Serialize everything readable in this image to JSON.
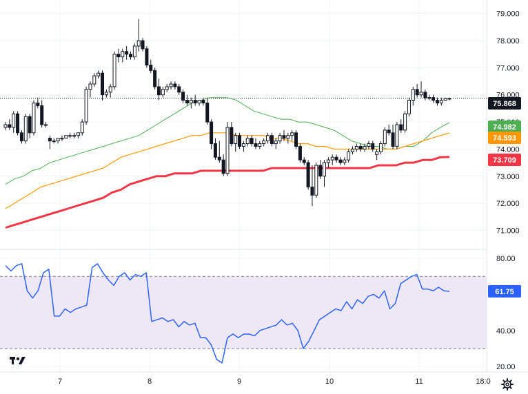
{
  "colors": {
    "up": "#131722",
    "down": "#131722",
    "ma_fast": "#4caf50",
    "ma_mid": "#ff9800",
    "ma_slow": "#f23645",
    "rsi": "#2962ff",
    "rsi_band": "#ede7f6",
    "badge_price": "#131722",
    "badge_rsi": "#2962ff"
  },
  "icons": {
    "logo": "tradingview-logo-icon",
    "settings": "gear-icon"
  },
  "chart_data": [
    {
      "type": "candlestick",
      "title": "",
      "ylim": [
        70.3,
        79.5
      ],
      "y_ticks": [
        "71.000",
        "72.000",
        "73.000",
        "74.000",
        "75.000",
        "76.000",
        "77.000",
        "78.000",
        "79.000"
      ],
      "x_ticks": [
        "7",
        "8",
        "9",
        "10",
        "11",
        "18:0"
      ],
      "last_price_line": 75.868,
      "badges": [
        {
          "label": "75.868",
          "value": 75.868,
          "color": "#131722"
        },
        {
          "label": "74.982",
          "value": 74.982,
          "color": "#4caf50"
        },
        {
          "label": "74.593",
          "value": 74.593,
          "color": "#ff9800"
        },
        {
          "label": "73.709",
          "value": 73.709,
          "color": "#f23645"
        }
      ],
      "candles": [
        [
          74.8,
          75.0,
          74.7,
          74.9
        ],
        [
          74.9,
          75.1,
          74.7,
          74.8
        ],
        [
          74.8,
          75.4,
          74.6,
          75.3
        ],
        [
          75.3,
          75.4,
          74.5,
          74.6
        ],
        [
          74.6,
          74.7,
          74.2,
          74.3
        ],
        [
          74.3,
          75.3,
          74.2,
          75.2
        ],
        [
          75.2,
          75.3,
          74.4,
          74.6
        ],
        [
          74.6,
          75.8,
          74.5,
          75.7
        ],
        [
          75.7,
          75.9,
          75.5,
          75.6
        ],
        [
          75.6,
          75.8,
          74.8,
          74.9
        ],
        [
          74.9,
          75.0,
          74.8,
          74.9
        ],
        [
          74.4,
          74.5,
          74.0,
          74.3
        ],
        [
          74.3,
          74.4,
          74.2,
          74.3
        ],
        [
          74.3,
          74.4,
          74.2,
          74.4
        ],
        [
          74.4,
          74.5,
          74.3,
          74.4
        ],
        [
          74.4,
          74.5,
          74.4,
          74.5
        ],
        [
          74.5,
          74.6,
          74.4,
          74.5
        ],
        [
          74.5,
          74.6,
          74.4,
          74.5
        ],
        [
          74.5,
          74.6,
          74.4,
          74.6
        ],
        [
          74.6,
          75.1,
          74.5,
          75.0
        ],
        [
          75.0,
          76.3,
          74.9,
          76.2
        ],
        [
          76.2,
          76.5,
          75.9,
          76.4
        ],
        [
          76.4,
          76.8,
          76.3,
          76.7
        ],
        [
          76.7,
          76.9,
          76.6,
          76.8
        ],
        [
          76.8,
          76.9,
          75.8,
          76.0
        ],
        [
          76.0,
          76.2,
          75.9,
          76.1
        ],
        [
          76.1,
          76.4,
          75.9,
          76.3
        ],
        [
          76.3,
          77.6,
          76.2,
          77.5
        ],
        [
          77.5,
          77.7,
          77.2,
          77.4
        ],
        [
          77.4,
          77.7,
          77.2,
          77.6
        ],
        [
          77.6,
          77.8,
          77.3,
          77.5
        ],
        [
          77.5,
          77.6,
          77.3,
          77.4
        ],
        [
          77.4,
          77.9,
          77.3,
          77.8
        ],
        [
          77.8,
          78.8,
          77.6,
          78.0
        ],
        [
          78.0,
          78.1,
          77.6,
          77.7
        ],
        [
          77.7,
          77.8,
          77.0,
          77.1
        ],
        [
          77.1,
          77.3,
          76.8,
          76.9
        ],
        [
          76.9,
          77.0,
          76.2,
          76.3
        ],
        [
          76.3,
          76.6,
          75.8,
          76.0
        ],
        [
          76.0,
          76.3,
          75.9,
          76.2
        ],
        [
          76.2,
          76.4,
          76.1,
          76.3
        ],
        [
          76.3,
          76.5,
          76.2,
          76.4
        ],
        [
          76.4,
          76.5,
          76.2,
          76.3
        ],
        [
          76.3,
          76.4,
          76.0,
          76.1
        ],
        [
          76.1,
          76.2,
          75.7,
          75.8
        ],
        [
          75.8,
          76.0,
          75.6,
          75.7
        ],
        [
          75.7,
          75.9,
          75.5,
          75.8
        ],
        [
          75.8,
          76.0,
          75.6,
          75.7
        ],
        [
          75.7,
          75.8,
          75.6,
          75.8
        ],
        [
          75.8,
          75.9,
          75.6,
          75.7
        ],
        [
          75.7,
          75.9,
          74.9,
          75.0
        ],
        [
          75.0,
          75.1,
          74.0,
          74.2
        ],
        [
          74.2,
          74.4,
          73.6,
          73.7
        ],
        [
          73.7,
          74.3,
          73.5,
          73.6
        ],
        [
          73.6,
          73.8,
          73.0,
          73.1
        ],
        [
          73.1,
          75.0,
          73.0,
          74.8
        ],
        [
          74.8,
          75.0,
          74.1,
          74.2
        ],
        [
          74.2,
          74.6,
          73.9,
          74.5
        ],
        [
          74.5,
          74.6,
          74.0,
          74.1
        ],
        [
          74.1,
          74.3,
          73.9,
          74.2
        ],
        [
          74.2,
          74.5,
          74.1,
          74.4
        ],
        [
          74.4,
          74.5,
          74.1,
          74.2
        ],
        [
          74.2,
          74.4,
          74.0,
          74.1
        ],
        [
          74.1,
          74.3,
          74.0,
          74.2
        ],
        [
          74.2,
          74.4,
          74.1,
          74.3
        ],
        [
          74.3,
          74.6,
          74.2,
          74.5
        ],
        [
          74.5,
          74.6,
          74.1,
          74.2
        ],
        [
          74.2,
          74.4,
          74.0,
          74.3
        ],
        [
          74.3,
          74.6,
          74.2,
          74.5
        ],
        [
          74.5,
          74.7,
          74.3,
          74.4
        ],
        [
          74.4,
          74.6,
          74.2,
          74.5
        ],
        [
          74.5,
          74.7,
          74.3,
          74.6
        ],
        [
          74.6,
          74.7,
          74.0,
          74.1
        ],
        [
          74.1,
          74.2,
          73.5,
          73.6
        ],
        [
          73.6,
          73.7,
          73.4,
          73.5
        ],
        [
          73.5,
          73.6,
          72.5,
          72.6
        ],
        [
          72.6,
          73.4,
          71.9,
          72.3
        ],
        [
          72.3,
          73.5,
          72.2,
          73.4
        ],
        [
          73.4,
          73.6,
          72.9,
          73.0
        ],
        [
          73.0,
          73.6,
          72.6,
          73.5
        ],
        [
          73.5,
          73.7,
          73.3,
          73.6
        ],
        [
          73.6,
          73.8,
          73.4,
          73.7
        ],
        [
          73.7,
          73.8,
          73.5,
          73.6
        ],
        [
          73.6,
          73.7,
          73.4,
          73.5
        ],
        [
          73.5,
          73.7,
          73.4,
          73.6
        ],
        [
          73.6,
          74.0,
          73.5,
          73.9
        ],
        [
          73.9,
          74.1,
          73.8,
          74.0
        ],
        [
          74.0,
          74.2,
          73.9,
          74.1
        ],
        [
          74.1,
          74.2,
          73.9,
          74.0
        ],
        [
          74.0,
          74.2,
          73.9,
          74.1
        ],
        [
          74.1,
          74.3,
          74.0,
          74.2
        ],
        [
          74.2,
          74.3,
          73.9,
          74.0
        ],
        [
          73.8,
          74.0,
          73.6,
          73.9
        ],
        [
          73.9,
          74.3,
          73.8,
          74.2
        ],
        [
          74.2,
          74.8,
          74.1,
          74.7
        ],
        [
          74.7,
          74.9,
          74.5,
          74.6
        ],
        [
          74.6,
          74.9,
          74.0,
          74.1
        ],
        [
          74.1,
          75.0,
          74.0,
          74.9
        ],
        [
          74.9,
          75.1,
          74.6,
          74.7
        ],
        [
          74.7,
          75.4,
          74.6,
          75.3
        ],
        [
          75.3,
          75.9,
          75.2,
          75.8
        ],
        [
          75.8,
          76.3,
          75.6,
          76.2
        ],
        [
          76.2,
          76.4,
          75.9,
          76.0
        ],
        [
          76.0,
          76.5,
          75.9,
          76.1
        ],
        [
          76.1,
          76.2,
          75.8,
          75.9
        ],
        [
          75.9,
          76.0,
          75.8,
          75.9
        ],
        [
          75.9,
          76.0,
          75.7,
          75.8
        ],
        [
          75.8,
          75.9,
          75.6,
          75.7
        ],
        [
          75.7,
          75.9,
          75.6,
          75.8
        ],
        [
          75.8,
          75.9,
          75.8,
          75.868
        ],
        [
          75.868,
          75.9,
          75.8,
          75.868
        ]
      ],
      "series": [
        {
          "id": "ma_fast",
          "values": [
            72.7,
            72.9,
            73.0,
            73.2,
            73.3,
            73.5,
            73.6,
            73.7,
            73.8,
            73.9,
            74.0,
            74.1,
            74.2,
            74.3,
            74.4,
            74.5,
            74.7,
            74.9,
            75.1,
            75.3,
            75.5,
            75.7,
            75.8,
            75.9,
            75.9,
            75.9,
            75.8,
            75.6,
            75.4,
            75.3,
            75.2,
            75.1,
            75.1,
            75.0,
            75.0,
            74.9,
            74.8,
            74.7,
            74.5,
            74.3,
            74.2,
            74.1,
            74.1,
            74.0,
            74.0,
            74.1,
            74.1,
            74.3,
            74.6,
            74.8,
            74.982
          ]
        },
        {
          "id": "ma_mid",
          "values": [
            71.8,
            72.0,
            72.2,
            72.4,
            72.6,
            72.7,
            72.8,
            72.9,
            73.0,
            73.1,
            73.2,
            73.3,
            73.5,
            73.7,
            73.8,
            73.9,
            74.0,
            74.1,
            74.2,
            74.3,
            74.4,
            74.5,
            74.5,
            74.6,
            74.6,
            74.6,
            74.5,
            74.5,
            74.5,
            74.5,
            74.4,
            74.4,
            74.3,
            74.2,
            74.2,
            74.1,
            74.1,
            74.0,
            74.0,
            74.0,
            74.0,
            74.0,
            74.0,
            74.0,
            74.0,
            74.1,
            74.2,
            74.3,
            74.4,
            74.5,
            74.593
          ]
        },
        {
          "id": "ma_slow",
          "values": [
            71.1,
            71.2,
            71.3,
            71.4,
            71.5,
            71.6,
            71.7,
            71.8,
            71.9,
            72.0,
            72.1,
            72.2,
            72.4,
            72.5,
            72.7,
            72.8,
            72.9,
            73.0,
            73.0,
            73.1,
            73.1,
            73.1,
            73.2,
            73.2,
            73.2,
            73.2,
            73.2,
            73.2,
            73.2,
            73.2,
            73.3,
            73.3,
            73.3,
            73.3,
            73.3,
            73.3,
            73.3,
            73.3,
            73.3,
            73.3,
            73.3,
            73.3,
            73.4,
            73.4,
            73.4,
            73.5,
            73.5,
            73.6,
            73.6,
            73.7,
            73.709
          ]
        }
      ]
    },
    {
      "type": "line",
      "title": "",
      "ylim": [
        17,
        85
      ],
      "y_ticks": [
        "20.00",
        "40.00",
        "80.00"
      ],
      "band": [
        30,
        70
      ],
      "badges": [
        {
          "label": "61.75",
          "value": 61.75,
          "color": "#2962ff"
        }
      ],
      "series": [
        {
          "id": "rsi",
          "values": [
            76,
            73,
            76,
            77,
            62,
            58,
            62,
            72,
            74,
            48,
            48,
            52,
            50,
            52,
            53,
            54,
            75,
            77,
            72,
            68,
            65,
            70,
            72,
            68,
            71,
            70,
            72,
            45,
            46,
            47,
            45,
            46,
            42,
            45,
            43,
            44,
            36,
            36,
            32,
            24,
            22,
            36,
            38,
            36,
            38,
            38,
            37,
            40,
            41,
            42,
            43,
            46,
            43,
            44,
            40,
            30,
            34,
            40,
            46,
            48,
            50,
            52,
            51,
            56,
            52,
            57,
            55,
            59,
            60,
            58,
            62,
            52,
            55,
            66,
            68,
            70,
            71,
            63,
            63,
            62,
            64,
            62,
            61.75
          ]
        }
      ]
    }
  ]
}
